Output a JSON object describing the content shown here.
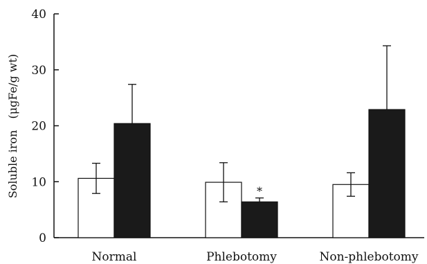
{
  "chart_data": {
    "type": "bar",
    "ylabel": "Soluble iron　(μgFe/g wt)",
    "ylim": [
      0,
      40
    ],
    "yticks": [
      "0",
      "10",
      "20",
      "30",
      "40"
    ],
    "categories": [
      "Normal",
      "Phlebotomy",
      "Non-phlebotomy"
    ],
    "series": [
      {
        "values": [
          10.6,
          9.9,
          9.5
        ],
        "errors": [
          2.7,
          3.5,
          2.1
        ],
        "color": "#ffffff"
      },
      {
        "values": [
          20.4,
          6.4,
          22.9
        ],
        "errors": [
          7.0,
          0.7,
          11.4
        ],
        "color": "#1a1a1a"
      }
    ],
    "annotations": [
      {
        "category": "Phlebotomy",
        "series": 1,
        "text": "*"
      }
    ],
    "grid": false,
    "legend": "none"
  }
}
